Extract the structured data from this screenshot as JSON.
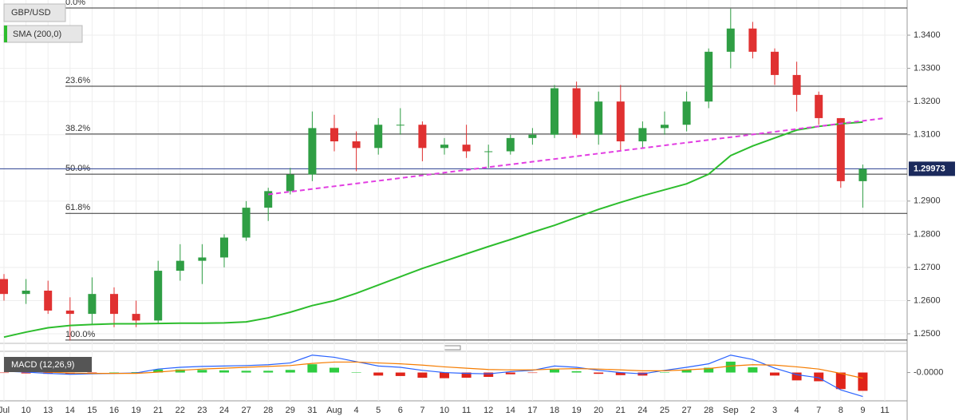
{
  "chart_data": [
    {
      "type": "candlestick",
      "title": "GBP/USD",
      "categories": [
        "Jul",
        "10",
        "13",
        "14",
        "15",
        "16",
        "19",
        "21",
        "22",
        "23",
        "24",
        "27",
        "28",
        "29",
        "31",
        "Aug",
        "4",
        "5",
        "6",
        "7",
        "10",
        "11",
        "12",
        "14",
        "17",
        "18",
        "19",
        "20",
        "21",
        "24",
        "25",
        "27",
        "28",
        "Sep",
        "2",
        "3",
        "4",
        "7",
        "8",
        "9",
        "11"
      ],
      "series": [
        {
          "name": "GBP/USD",
          "up_color": "#2f9e44",
          "down_color": "#e03131",
          "open": [
            1.2665,
            1.262,
            1.263,
            1.257,
            1.256,
            1.262,
            1.256,
            1.254,
            1.269,
            1.272,
            1.273,
            1.279,
            1.288,
            1.293,
            1.298,
            1.312,
            1.308,
            1.306,
            1.313,
            1.313,
            1.306,
            1.307,
            1.305,
            1.305,
            1.309,
            1.31,
            1.324,
            1.31,
            1.32,
            1.308,
            1.312,
            1.313,
            1.32,
            1.335,
            1.342,
            1.335,
            1.328,
            1.322,
            1.315,
            1.296,
            null
          ],
          "high": [
            1.268,
            1.2665,
            1.266,
            1.261,
            1.267,
            1.264,
            1.26,
            1.272,
            1.277,
            1.277,
            1.28,
            1.29,
            1.294,
            1.3,
            1.317,
            1.316,
            1.311,
            1.315,
            1.318,
            1.314,
            1.309,
            1.313,
            1.307,
            1.31,
            1.312,
            1.325,
            1.326,
            1.323,
            1.325,
            1.314,
            1.317,
            1.323,
            1.336,
            1.348,
            1.344,
            1.336,
            1.332,
            1.323,
            1.315,
            1.301,
            null
          ],
          "low": [
            1.26,
            1.259,
            1.256,
            1.248,
            1.253,
            1.252,
            1.252,
            1.253,
            1.266,
            1.265,
            1.27,
            1.278,
            1.284,
            1.292,
            1.296,
            1.305,
            1.299,
            1.304,
            1.31,
            1.302,
            1.304,
            1.303,
            1.3,
            1.304,
            1.307,
            1.309,
            1.309,
            1.307,
            1.305,
            1.306,
            1.31,
            1.311,
            1.318,
            1.33,
            1.333,
            1.325,
            1.317,
            1.313,
            1.294,
            1.288,
            null
          ],
          "close": [
            1.262,
            1.263,
            1.257,
            1.256,
            1.262,
            1.256,
            1.254,
            1.269,
            1.272,
            1.273,
            1.279,
            1.288,
            1.293,
            1.298,
            1.312,
            1.308,
            1.306,
            1.313,
            1.313,
            1.306,
            1.307,
            1.305,
            1.305,
            1.309,
            1.31,
            1.324,
            1.31,
            1.32,
            1.308,
            1.312,
            1.313,
            1.32,
            1.335,
            1.342,
            1.335,
            1.328,
            1.322,
            1.315,
            1.296,
            1.2997,
            null
          ]
        },
        {
          "name": "SMA (200,0)",
          "color": "#2dbd2d",
          "values": [
            1.249,
            1.2505,
            1.2518,
            1.2525,
            1.2528,
            1.253,
            1.253,
            1.2531,
            1.2532,
            1.2532,
            1.2533,
            1.2536,
            1.2548,
            1.2565,
            1.2585,
            1.26,
            1.2622,
            1.2647,
            1.2672,
            1.2697,
            1.2719,
            1.2741,
            1.2763,
            1.2784,
            1.2806,
            1.2827,
            1.2851,
            1.2875,
            1.2896,
            1.2916,
            1.2934,
            1.2952,
            1.2981,
            1.3037,
            1.3066,
            1.309,
            1.3114,
            1.3125,
            1.3133,
            1.3138,
            null
          ]
        }
      ],
      "ylim": [
        1.2476,
        1.3506
      ],
      "yticks": [
        {
          "value": 1.25,
          "label": "1.2500"
        },
        {
          "value": 1.26,
          "label": "1.2600"
        },
        {
          "value": 1.27,
          "label": "1.2700"
        },
        {
          "value": 1.28,
          "label": "1.2800"
        },
        {
          "value": 1.29,
          "label": "1.2900"
        },
        {
          "value": 1.31,
          "label": "1.3100"
        },
        {
          "value": 1.32,
          "label": "1.3200"
        },
        {
          "value": 1.33,
          "label": "1.3300"
        },
        {
          "value": 1.34,
          "label": "1.3400"
        }
      ],
      "grid": true,
      "last_price": 1.29973,
      "fib_levels": [
        {
          "label": "0.0%",
          "value": 1.3482
        },
        {
          "label": "23.6%",
          "value": 1.3246
        },
        {
          "label": "38.2%",
          "value": 1.3102
        },
        {
          "label": "50.0%",
          "value": 1.2981
        },
        {
          "label": "61.8%",
          "value": 1.2863
        },
        {
          "label": "100.0%",
          "value": 1.2481
        }
      ],
      "trendline": {
        "from": {
          "index": 12,
          "value": 1.292
        },
        "to": {
          "index": 40,
          "value": 1.315
        },
        "color": "#e23fe2",
        "dashed": true
      }
    },
    {
      "type": "macd",
      "title": "MACD (12,26,9)",
      "macd": {
        "color": "#2962ff",
        "values": [
          0.0003,
          0.0001,
          -0.0002,
          -0.0004,
          -0.0003,
          -0.0002,
          -0.0001,
          0.0008,
          0.0012,
          0.0014,
          0.0015,
          0.0016,
          0.0018,
          0.0022,
          0.004,
          0.0035,
          0.0025,
          0.0015,
          0.0012,
          0.0005,
          0.0,
          -0.0002,
          -0.0003,
          0.0002,
          0.0005,
          0.0015,
          0.0012,
          0.0005,
          0.0,
          -0.0003,
          0.0005,
          0.0012,
          0.002,
          0.004,
          0.003,
          0.001,
          -0.0005,
          -0.0012,
          -0.004,
          -0.0055,
          null
        ]
      },
      "signal": {
        "color": "#f57c00",
        "values": [
          0.0004,
          0.0003,
          0.0001,
          -0.0001,
          -0.0002,
          -0.0002,
          -0.0002,
          0.0001,
          0.0005,
          0.0008,
          0.001,
          0.0012,
          0.0014,
          0.0016,
          0.0021,
          0.0024,
          0.0024,
          0.0022,
          0.002,
          0.0017,
          0.0013,
          0.001,
          0.0007,
          0.0006,
          0.0006,
          0.0008,
          0.0009,
          0.0008,
          0.0006,
          0.0004,
          0.0004,
          0.0006,
          0.0009,
          0.0015,
          0.0018,
          0.0017,
          0.0013,
          0.0008,
          -0.0002,
          -0.0013,
          null
        ]
      },
      "histogram": {
        "up_color": "#2ecc40",
        "down_color": "#e0241a",
        "values": [
          -0.0001,
          -0.0002,
          -0.0003,
          -0.0003,
          -0.0001,
          0.0,
          0.0001,
          0.0007,
          0.0007,
          0.0006,
          0.0005,
          0.0004,
          0.0004,
          0.0006,
          0.0019,
          0.0011,
          0.0001,
          -0.0007,
          -0.0008,
          -0.0012,
          -0.0013,
          -0.0012,
          -0.001,
          -0.0004,
          -0.0001,
          0.0007,
          0.0003,
          -0.0003,
          -0.0006,
          -0.0007,
          0.0001,
          0.0006,
          0.0011,
          0.0025,
          0.0012,
          -0.0007,
          -0.0018,
          -0.002,
          -0.0038,
          -0.0042,
          null
        ]
      },
      "ylim": [
        -0.0065,
        0.0045
      ],
      "yticks": [
        {
          "value": 0,
          "label": "-0.0000"
        }
      ]
    }
  ]
}
